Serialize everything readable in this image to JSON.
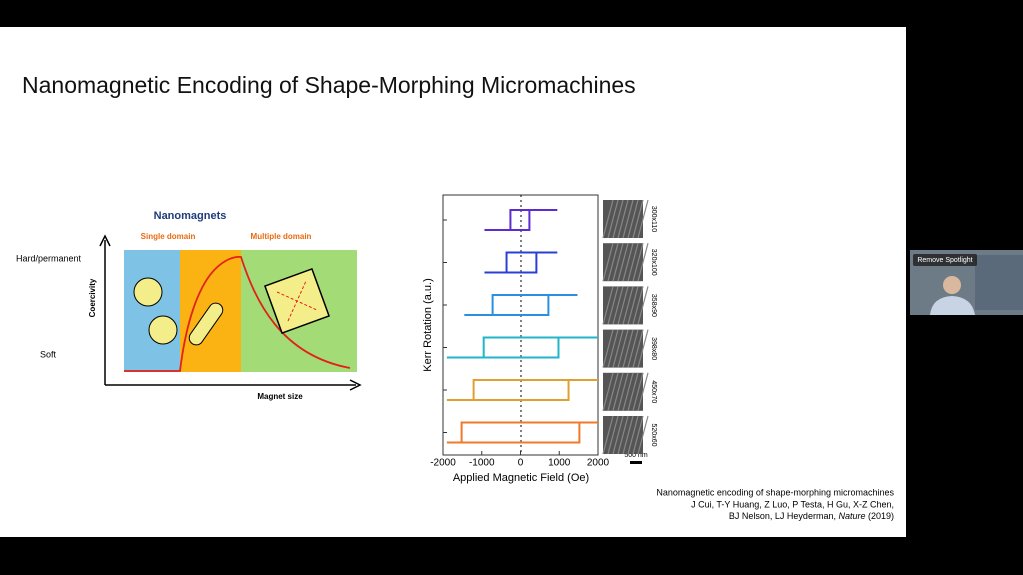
{
  "slide": {
    "title": "Nanomagnetic Encoding of Shape-Morphing Micromachines",
    "diagram": {
      "title": "Nanomagnets",
      "region_left": "Single domain",
      "region_right": "Multiple domain",
      "y_label": "Coercivity",
      "x_label": "Magnet size",
      "y_high": "Hard/permanent",
      "y_low": "Soft"
    },
    "hysteresis": {
      "x_label": "Applied Magnetic Field (Oe)",
      "y_label": "Kerr Rotation (a.u.)",
      "xlim": [
        -2000,
        2000
      ],
      "xticks": [
        -2000,
        -1000,
        0,
        1000,
        2000
      ],
      "loops": [
        {
          "color": "#5b2ccf",
          "hc": [
            -260,
            230
          ],
          "range": [
            -930,
            950
          ]
        },
        {
          "color": "#2a3fd6",
          "hc": [
            -360,
            410
          ],
          "range": [
            -930,
            950
          ]
        },
        {
          "color": "#2a8fe0",
          "hc": [
            -720,
            720
          ],
          "range": [
            -1450,
            1470
          ]
        },
        {
          "color": "#1fb6c9",
          "hc": [
            -950,
            980
          ],
          "range": [
            -1900,
            2000
          ]
        },
        {
          "color": "#e0a030",
          "hc": [
            -1210,
            1240
          ],
          "range": [
            -1900,
            2000
          ]
        },
        {
          "color": "#ee7a2a",
          "hc": [
            -1520,
            1520
          ],
          "range": [
            -1900,
            2000
          ]
        }
      ],
      "samples": [
        "300x110",
        "320x100",
        "358x90",
        "398x80",
        "450x70",
        "520x60"
      ],
      "scale_bar": "500 nm"
    },
    "citation": {
      "line1": "Nanomagnetic encoding of shape-morphing micromachines",
      "line2": "J Cui, T-Y Huang, Z Luo, P Testa, H Gu, X-Z Chen,",
      "line3": [
        "BJ Nelson, LJ Heyderman, ",
        "Nature",
        " (2019)"
      ]
    }
  },
  "video": {
    "button": "Remove Spotlight"
  }
}
